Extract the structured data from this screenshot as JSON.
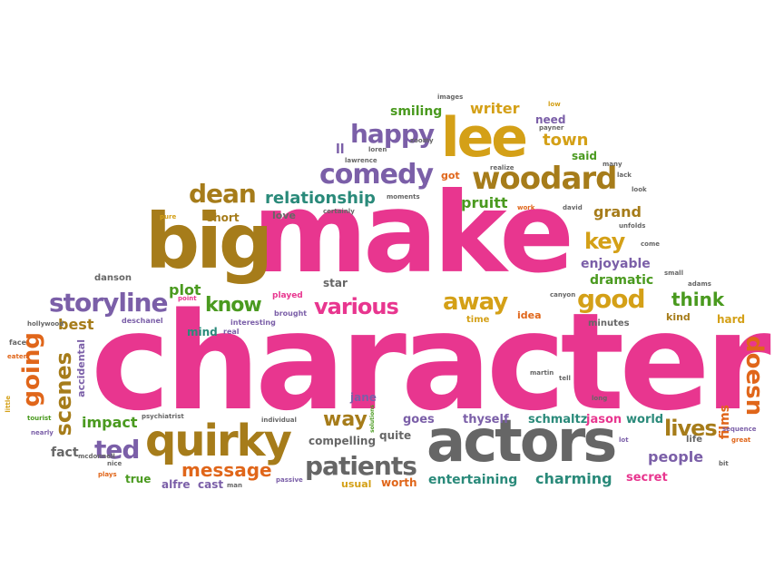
{
  "colors": {
    "pink": "#e8368f",
    "gold": "#d4a017",
    "brown": "#a67c1a",
    "purple": "#7b5fa8",
    "green": "#4a9a1f",
    "gray": "#666666",
    "orange": "#e0661a",
    "teal": "#2a8a7a",
    "red": "#c0392b"
  },
  "words": {
    "character": "character",
    "make": "make",
    "big": "big",
    "actors": "actors",
    "lee": "lee",
    "quirky": "quirky",
    "woodard": "woodard",
    "comedy": "comedy",
    "happy": "happy",
    "storyline": "storyline",
    "various": "various",
    "patients": "patients",
    "good": "good",
    "away": "away",
    "dean": "dean",
    "key": "key",
    "ted": "ted",
    "going": "going",
    "scenes": "scenes",
    "lives": "lives",
    "doesn": "doesn",
    "message": "message",
    "know": "know",
    "think": "think",
    "town": "town",
    "writer": "writer",
    "smiling": "smiling",
    "relationship": "relationship",
    "pruitt": "pruitt",
    "grand": "grand",
    "enjoyable": "enjoyable",
    "dramatic": "dramatic",
    "plot": "plot",
    "impact": "impact",
    "way": "way",
    "people": "people",
    "charming": "charming",
    "entertaining": "entertaining",
    "schmaltz": "schmaltz",
    "jason": "jason",
    "world": "world",
    "films": "films",
    "best": "best",
    "short": "short",
    "love": "love",
    "star": "star",
    "jane": "jane",
    "goes": "goes",
    "thyself": "thyself",
    "compelling": "compelling",
    "quite": "quite",
    "fact": "fact",
    "true": "true",
    "alfre": "alfre",
    "cast": "cast",
    "usual": "usual",
    "worth": "worth",
    "secret": "secret",
    "hard": "hard",
    "kind": "kind",
    "minutes": "minutes",
    "idea": "idea",
    "time": "time",
    "mind": "mind",
    "accidental": "accidental",
    "danson": "danson",
    "need": "need",
    "said": "said",
    "got": "got",
    "life": "life",
    "ll": "ll",
    "played": "played",
    "interesting": "interesting",
    "real": "real",
    "brought": "brought",
    "deschanel": "deschanel",
    "hollywood": "hollywood",
    "point": "point",
    "pure": "pure",
    "face": "face",
    "eaten": "eaten",
    "little": "little",
    "tourist": "tourist",
    "nearly": "nearly",
    "mcdonnell": "mcdonnell",
    "nice": "nice",
    "plays": "plays",
    "psychiatrist": "psychiatrist",
    "individual": "individual",
    "solutions": "solutions",
    "passive": "passive",
    "man": "man",
    "martin": "martin",
    "tell": "tell",
    "long": "long",
    "lot": "lot",
    "great": "great",
    "sequence": "sequence",
    "bit": "bit",
    "canyon": "canyon",
    "small": "small",
    "adams": "adams",
    "come": "come",
    "unfolds": "unfolds",
    "david": "david",
    "work": "work",
    "lack": "lack",
    "look": "look",
    "many": "many",
    "realize": "realize",
    "payner": "payner",
    "zoomy": "zoomy",
    "loren": "loren",
    "lawrence": "lawrence",
    "images": "images",
    "low": "low",
    "moments": "moments",
    "certainly": "certainly"
  }
}
